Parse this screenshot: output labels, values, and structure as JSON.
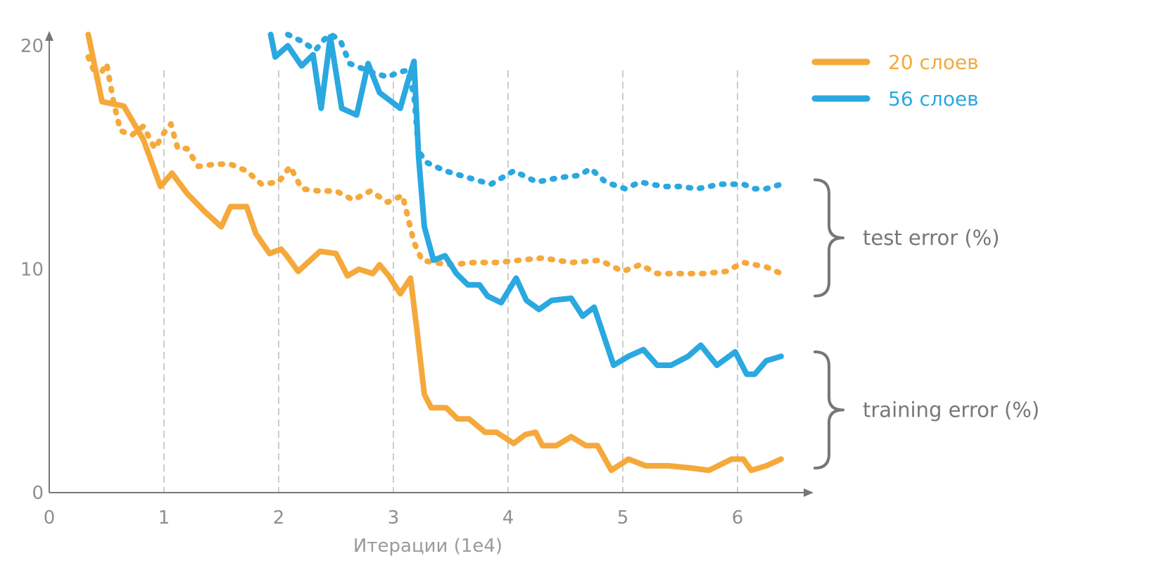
{
  "chart_data": {
    "type": "line",
    "title": "",
    "xlabel": "Итерации (1e4)",
    "ylabel": "",
    "xlim": [
      0,
      6.6
    ],
    "ylim": [
      0,
      20
    ],
    "xticks": [
      "0",
      "1",
      "2",
      "3",
      "4",
      "5",
      "6"
    ],
    "yticks": [
      "0",
      "10",
      "20"
    ],
    "vertical_dashed_gridlines": [
      1,
      2,
      3,
      4,
      5,
      6
    ],
    "legend_position": "top-right",
    "colors": {
      "20 слоев": "#f5a93b",
      "56 слоев": "#2aa8e0",
      "axis": "#777777",
      "grid": "#cccccc",
      "bracket": "#777777"
    },
    "legend": [
      {
        "label": "20 слоев",
        "color": "#f5a93b"
      },
      {
        "label": "56 слоев",
        "color": "#2aa8e0"
      }
    ],
    "annotations": [
      {
        "text": "test error (%)",
        "y_range": [
          8.8,
          14
        ]
      },
      {
        "text": "training error (%)",
        "y_range": [
          1.1,
          6.3
        ]
      }
    ],
    "series": [
      {
        "name": "20 слоев",
        "metric": "training error (%)",
        "style": "solid",
        "x": [
          0.34,
          0.46,
          0.65,
          0.82,
          0.97,
          1.07,
          1.2,
          1.35,
          1.5,
          1.58,
          1.72,
          1.8,
          1.92,
          2.02,
          2.07,
          2.17,
          2.36,
          2.5,
          2.6,
          2.7,
          2.82,
          2.88,
          2.96,
          3.06,
          3.15,
          3.2,
          3.27,
          3.33,
          3.46,
          3.56,
          3.66,
          3.8,
          3.9,
          4.05,
          4.15,
          4.24,
          4.3,
          4.42,
          4.55,
          4.68,
          4.78,
          4.9,
          5.05,
          5.2,
          5.4,
          5.6,
          5.75,
          5.95,
          6.05,
          6.12,
          6.25,
          6.38
        ],
        "values": [
          20.5,
          17.5,
          17.3,
          15.8,
          13.7,
          14.3,
          13.4,
          12.6,
          11.9,
          12.8,
          12.8,
          11.6,
          10.7,
          10.9,
          10.6,
          9.9,
          10.8,
          10.7,
          9.7,
          10.0,
          9.8,
          10.2,
          9.7,
          8.9,
          9.6,
          7.5,
          4.4,
          3.8,
          3.8,
          3.3,
          3.3,
          2.7,
          2.7,
          2.2,
          2.6,
          2.7,
          2.1,
          2.1,
          2.5,
          2.1,
          2.1,
          1.0,
          1.5,
          1.2,
          1.2,
          1.1,
          1.0,
          1.5,
          1.5,
          1.0,
          1.2,
          1.5
        ]
      },
      {
        "name": "20 слоев",
        "metric": "test error (%)",
        "style": "dotted",
        "x": [
          0.34,
          0.42,
          0.5,
          0.56,
          0.62,
          0.72,
          0.82,
          0.92,
          1.0,
          1.06,
          1.12,
          1.2,
          1.3,
          1.45,
          1.58,
          1.72,
          1.85,
          2.0,
          2.1,
          2.2,
          2.35,
          2.5,
          2.65,
          2.8,
          2.95,
          3.08,
          3.18,
          3.25,
          3.35,
          3.5,
          3.7,
          3.9,
          4.1,
          4.3,
          4.55,
          4.8,
          5.0,
          5.15,
          5.3,
          5.5,
          5.7,
          5.9,
          6.05,
          6.25,
          6.38
        ],
        "values": [
          19.5,
          18.5,
          19.2,
          17.5,
          16.2,
          16.0,
          16.4,
          15.4,
          16.1,
          16.5,
          15.4,
          15.4,
          14.6,
          14.7,
          14.7,
          14.4,
          13.8,
          13.9,
          14.6,
          13.6,
          13.5,
          13.5,
          13.1,
          13.5,
          13.0,
          13.3,
          11.2,
          10.4,
          10.3,
          10.2,
          10.3,
          10.3,
          10.4,
          10.5,
          10.3,
          10.4,
          9.9,
          10.2,
          9.8,
          9.8,
          9.8,
          9.9,
          10.3,
          10.1,
          9.8
        ]
      },
      {
        "name": "56 слоев",
        "metric": "training error (%)",
        "style": "solid",
        "x": [
          1.93,
          1.97,
          2.08,
          2.2,
          2.3,
          2.37,
          2.45,
          2.55,
          2.68,
          2.78,
          2.88,
          3.06,
          3.12,
          3.18,
          3.22,
          3.27,
          3.35,
          3.45,
          3.55,
          3.65,
          3.75,
          3.82,
          3.94,
          4.07,
          4.16,
          4.27,
          4.38,
          4.55,
          4.65,
          4.75,
          4.92,
          5.05,
          5.18,
          5.3,
          5.42,
          5.57,
          5.68,
          5.82,
          5.98,
          6.08,
          6.15,
          6.25,
          6.38
        ],
        "values": [
          20.5,
          19.5,
          20.0,
          19.1,
          19.6,
          17.2,
          20.4,
          17.2,
          16.9,
          19.2,
          17.9,
          17.2,
          18.3,
          19.3,
          15.0,
          11.9,
          10.4,
          10.6,
          9.8,
          9.3,
          9.3,
          8.8,
          8.5,
          9.6,
          8.6,
          8.2,
          8.6,
          8.7,
          7.9,
          8.3,
          5.7,
          6.1,
          6.4,
          5.7,
          5.7,
          6.1,
          6.6,
          5.7,
          6.3,
          5.3,
          5.3,
          5.9,
          6.1
        ]
      },
      {
        "name": "56 слоев",
        "metric": "test error (%)",
        "style": "dotted",
        "x": [
          2.08,
          2.2,
          2.32,
          2.4,
          2.46,
          2.54,
          2.62,
          2.72,
          2.82,
          2.95,
          3.04,
          3.12,
          3.18,
          3.22,
          3.28,
          3.45,
          3.65,
          3.85,
          4.05,
          4.25,
          4.45,
          4.62,
          4.72,
          4.85,
          5.02,
          5.15,
          5.35,
          5.5,
          5.65,
          5.85,
          6.05,
          6.15,
          6.25,
          6.38
        ],
        "values": [
          20.5,
          20.2,
          19.8,
          20.3,
          20.5,
          20.2,
          19.2,
          19.0,
          18.8,
          18.6,
          18.8,
          18.9,
          17.8,
          15.3,
          14.8,
          14.4,
          14.1,
          13.8,
          14.4,
          13.9,
          14.1,
          14.2,
          14.5,
          13.9,
          13.6,
          13.9,
          13.7,
          13.7,
          13.6,
          13.8,
          13.8,
          13.6,
          13.6,
          13.8
        ]
      }
    ]
  }
}
